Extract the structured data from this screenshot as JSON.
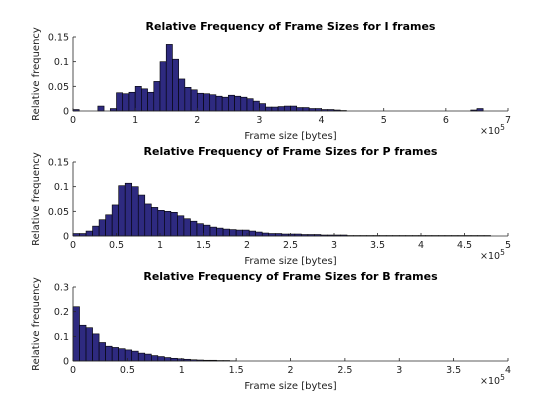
{
  "chart_data": [
    {
      "type": "bar",
      "title": "Relative Frequency of Frame Sizes for I frames",
      "xlabel": "Frame size [bytes]",
      "ylabel": "Relative frequency",
      "x_exponent_label": "×10^5",
      "xlim": [
        0,
        700000
      ],
      "ylim": [
        0,
        0.15
      ],
      "xticks": [
        "0",
        "1",
        "2",
        "3",
        "4",
        "5",
        "6",
        "7"
      ],
      "yticks": [
        "0",
        "0.05",
        "0.1",
        "0.15"
      ],
      "bar_color": "#2e2a80",
      "bin_width": 10000,
      "x": [
        5000,
        45000,
        65000,
        75000,
        85000,
        95000,
        105000,
        115000,
        125000,
        135000,
        145000,
        155000,
        165000,
        175000,
        185000,
        195000,
        205000,
        215000,
        225000,
        235000,
        245000,
        255000,
        265000,
        275000,
        285000,
        295000,
        305000,
        315000,
        325000,
        335000,
        345000,
        355000,
        365000,
        375000,
        385000,
        395000,
        405000,
        415000,
        425000,
        435000,
        645000,
        655000
      ],
      "values": [
        0.003,
        0.01,
        0.005,
        0.037,
        0.035,
        0.038,
        0.05,
        0.045,
        0.038,
        0.06,
        0.1,
        0.135,
        0.105,
        0.065,
        0.048,
        0.043,
        0.036,
        0.035,
        0.033,
        0.03,
        0.028,
        0.032,
        0.03,
        0.028,
        0.025,
        0.02,
        0.015,
        0.008,
        0.008,
        0.009,
        0.01,
        0.01,
        0.007,
        0.007,
        0.005,
        0.005,
        0.003,
        0.003,
        0.002,
        0.001,
        0.002,
        0.005
      ]
    },
    {
      "type": "bar",
      "title": "Relative Frequency of Frame Sizes for P frames",
      "xlabel": "Frame size [bytes]",
      "ylabel": "Relative frequency",
      "x_exponent_label": "×10^5",
      "xlim": [
        0,
        500000
      ],
      "ylim": [
        0,
        0.15
      ],
      "xticks": [
        "0",
        "0.5",
        "1",
        "1.5",
        "2",
        "2.5",
        "3",
        "3.5",
        "4",
        "4.5",
        "5"
      ],
      "yticks": [
        "0",
        "0.05",
        "0.1",
        "0.15"
      ],
      "bar_color": "#2e2a80",
      "bin_width": 7500,
      "x": [
        3750,
        11250,
        18750,
        26250,
        33750,
        41250,
        48750,
        56250,
        63750,
        71250,
        78750,
        86250,
        93750,
        101250,
        108750,
        116250,
        123750,
        131250,
        138750,
        146250,
        153750,
        161250,
        168750,
        176250,
        183750,
        191250,
        198750,
        206250,
        213750,
        221250,
        228750,
        236250,
        243750,
        251250,
        258750,
        266250,
        273750,
        281250,
        288750,
        296250,
        303750,
        311250,
        318750,
        326250,
        333750,
        341250,
        348750,
        356250,
        363750,
        371250,
        378750,
        386250,
        393750,
        401250,
        408750,
        416250,
        423750,
        431250,
        438750,
        446250,
        453750,
        461250,
        468750,
        476250
      ],
      "values": [
        0.005,
        0.005,
        0.01,
        0.02,
        0.033,
        0.043,
        0.063,
        0.102,
        0.107,
        0.1,
        0.083,
        0.065,
        0.058,
        0.052,
        0.05,
        0.048,
        0.041,
        0.035,
        0.03,
        0.025,
        0.022,
        0.018,
        0.016,
        0.014,
        0.013,
        0.012,
        0.012,
        0.01,
        0.008,
        0.006,
        0.005,
        0.005,
        0.004,
        0.004,
        0.004,
        0.003,
        0.003,
        0.003,
        0.002,
        0.002,
        0.002,
        0.002,
        0.001,
        0.001,
        0.001,
        0.001,
        0.001,
        0.001,
        0.001,
        0.001,
        0.001,
        0.001,
        0.001,
        0.001,
        0.001,
        0.001,
        0.001,
        0.001,
        0.001,
        0.001,
        0.001,
        0.001,
        0.001,
        0.001
      ]
    },
    {
      "type": "bar",
      "title": "Relative Frequency of Frame Sizes for B frames",
      "xlabel": "Frame size [bytes]",
      "ylabel": "Relative frequency",
      "x_exponent_label": "×10^5",
      "xlim": [
        0,
        400000
      ],
      "ylim": [
        0,
        0.3
      ],
      "xticks": [
        "0",
        "0.5",
        "1",
        "1.5",
        "2",
        "2.5",
        "3",
        "3.5",
        "4"
      ],
      "yticks": [
        "0",
        "0.1",
        "0.2",
        "0.3"
      ],
      "bar_color": "#2e2a80",
      "bin_width": 6000,
      "x": [
        3000,
        9000,
        15000,
        21000,
        27000,
        33000,
        39000,
        45000,
        51000,
        57000,
        63000,
        69000,
        75000,
        81000,
        87000,
        93000,
        99000,
        105000,
        111000,
        117000,
        123000,
        129000,
        135000,
        141000,
        147000
      ],
      "values": [
        0.22,
        0.145,
        0.135,
        0.11,
        0.075,
        0.06,
        0.055,
        0.05,
        0.045,
        0.04,
        0.032,
        0.028,
        0.022,
        0.018,
        0.014,
        0.011,
        0.009,
        0.007,
        0.005,
        0.004,
        0.003,
        0.003,
        0.002,
        0.002,
        0.001
      ]
    }
  ]
}
